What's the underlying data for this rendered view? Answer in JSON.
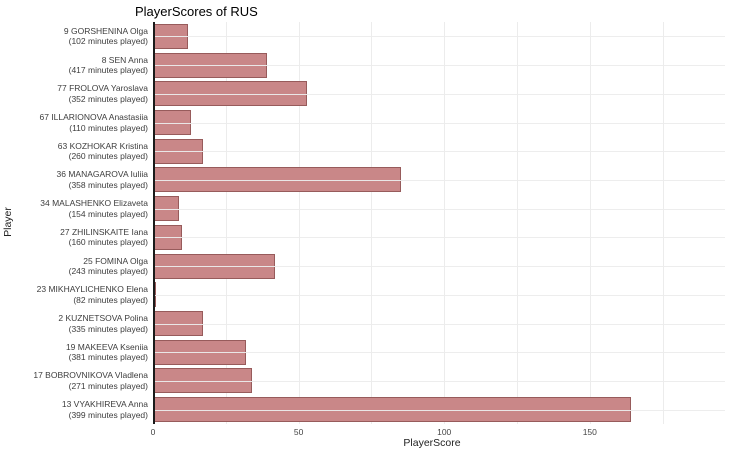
{
  "title": "PlayerScores of RUS",
  "colors": {
    "bar_fill": "#c98788",
    "bar_border": "#6e3737",
    "gridline": "#ececec",
    "zeroline": "#1a1a1a",
    "text": "#3d3d3d"
  },
  "chart_data": {
    "type": "bar",
    "orientation": "horizontal",
    "title": "PlayerScores of RUS",
    "xlabel": "PlayerScore",
    "ylabel": "Player",
    "xlim": [
      0,
      175
    ],
    "x_ticks": [
      0,
      50,
      100,
      150
    ],
    "x_grid_step": 25,
    "grid": true,
    "legend": false,
    "categories": [
      "9 GORSHENINA Olga",
      "8 SEN Anna",
      "77 FROLOVA Yaroslava",
      "67 ILLARIONOVA Anastasiia",
      "63 KOZHOKAR Kristina",
      "36 MANAGAROVA Iuliia",
      "34 MALASHENKO Elizaveta",
      "27 ZHILINSKAITE Iana",
      "25 FOMINA Olga",
      "23 MIKHAYLICHENKO Elena",
      "2 KUZNETSOVA Polina",
      "19 MAKEEVA Kseniia",
      "17 BOBROVNIKOVA Vladlena",
      "13 VYAKHIREVA Anna"
    ],
    "category_sublabels": [
      "(102 minutes played)",
      "(417 minutes played)",
      "(352 minutes played)",
      "(110 minutes played)",
      "(260 minutes played)",
      "(358 minutes played)",
      "(154 minutes played)",
      "(160 minutes played)",
      "(243 minutes played)",
      "(82 minutes played)",
      "(335 minutes played)",
      "(381 minutes played)",
      "(271 minutes played)",
      "(399 minutes played)"
    ],
    "values": [
      12,
      39,
      53,
      13,
      17,
      85,
      9,
      10,
      42,
      1,
      17,
      32,
      34,
      164
    ]
  }
}
